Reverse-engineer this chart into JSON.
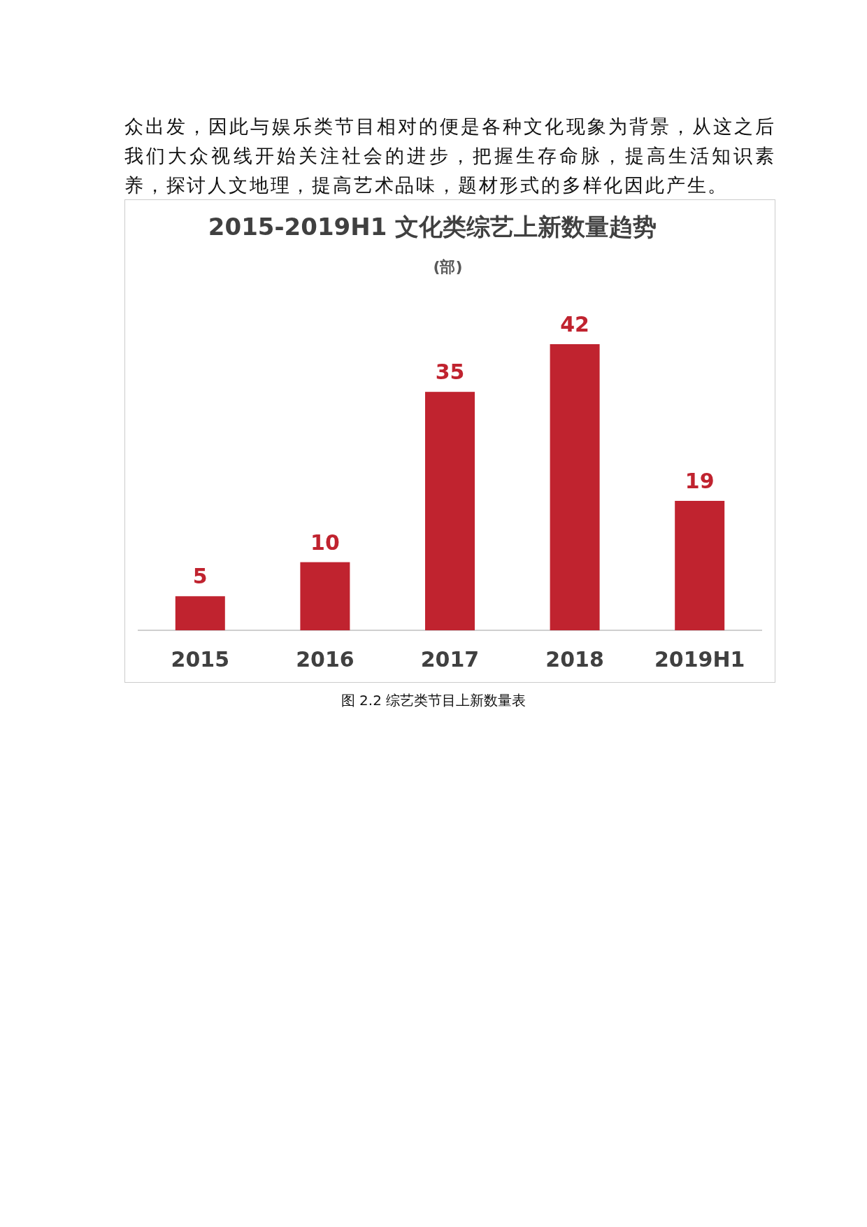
{
  "chart_data": {
    "type": "bar",
    "title": "2015-2019H1 文化类综艺上新数量趋势",
    "subtitle": "(部)",
    "categories": [
      "2015",
      "2016",
      "2017",
      "2018",
      "2019H1"
    ],
    "values": [
      5,
      10,
      35,
      42,
      19
    ],
    "color": "#c0232f",
    "data_labels": true,
    "annotations": [
      "众出发，因此与娱乐类节目相对的便是各种文化现象为背景，从这之后我们大众视线开始关注社会的进步，把握生存命脉，提高生活知识素养，探讨人文地理，提高艺术品味，题材形式的多样化因此产生。",
      "图 2.2 综艺类节目上新数量表"
    ]
  }
}
